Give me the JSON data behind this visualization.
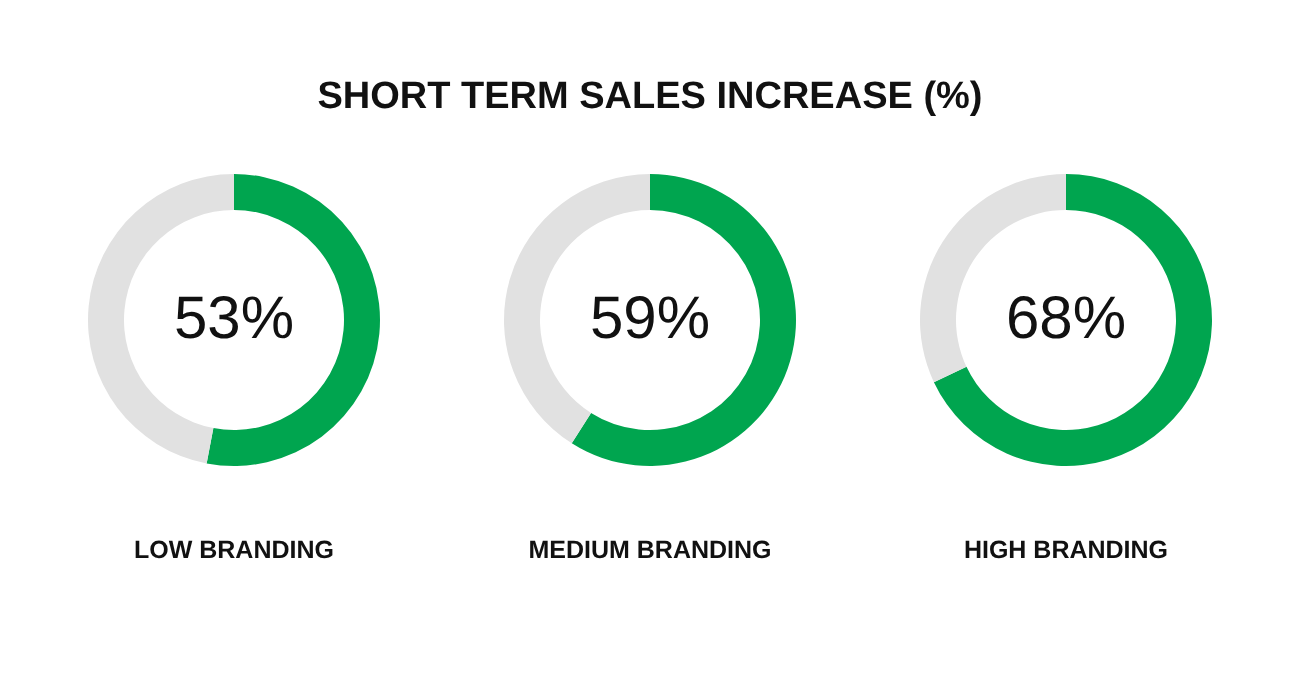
{
  "chart_data": [
    {
      "type": "other",
      "title": "SHORT TERM SALES INCREASE (%)"
    },
    {
      "type": "donut",
      "categories": [
        null,
        null
      ],
      "values": [
        53,
        47
      ],
      "colors": [
        "#00a54f",
        "#e1e1e1"
      ],
      "annotations": [
        "53%"
      ],
      "xlabel": "LOW BRANDING"
    },
    {
      "type": "donut",
      "categories": [
        null,
        null
      ],
      "values": [
        59,
        41
      ],
      "colors": [
        "#00a54f",
        "#e1e1e1"
      ],
      "annotations": [
        "59%"
      ],
      "xlabel": "MEDIUM BRANDING"
    },
    {
      "type": "donut",
      "categories": [
        null,
        null
      ],
      "values": [
        68,
        32
      ],
      "colors": [
        "#00a54f",
        "#e1e1e1"
      ],
      "annotations": [
        "68%"
      ],
      "xlabel": "HIGH BRANDING"
    }
  ]
}
